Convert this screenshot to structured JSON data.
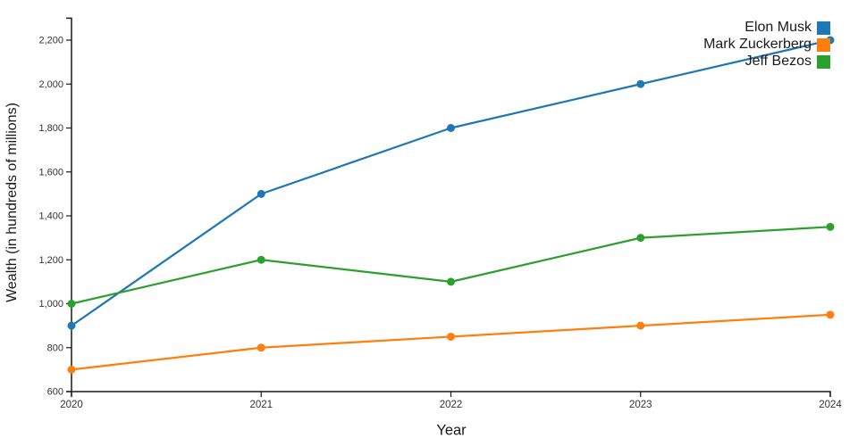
{
  "chart_data": {
    "type": "line",
    "title": "",
    "xlabel": "Year",
    "ylabel": "Wealth (in hundreds of millions)",
    "x": [
      2020,
      2021,
      2022,
      2023,
      2024
    ],
    "x_tick_labels": [
      "2020",
      "2021",
      "2022",
      "2023",
      "2024"
    ],
    "y_ticks": [
      600,
      800,
      1000,
      1200,
      1400,
      1600,
      1800,
      2000,
      2200
    ],
    "y_tick_labels": [
      "600",
      "800",
      "1,000",
      "1,200",
      "1,400",
      "1,600",
      "1,800",
      "2,000",
      "2,200"
    ],
    "xlim": [
      2020,
      2024
    ],
    "ylim": [
      600,
      2300
    ],
    "grid": false,
    "legend_position": "top-right",
    "background": "#ffffff",
    "axis_color": "#1a1a1a",
    "tick_label_color": "#333333",
    "series": [
      {
        "name": "Elon Musk",
        "color": "#1f77b4",
        "values": [
          900,
          1500,
          1800,
          2000,
          2200
        ]
      },
      {
        "name": "Mark Zuckerberg",
        "color": "#ff7f0e",
        "values": [
          700,
          800,
          850,
          900,
          950
        ]
      },
      {
        "name": "Jeff Bezos",
        "color": "#2ca02c",
        "values": [
          1000,
          1200,
          1100,
          1300,
          1350
        ]
      }
    ]
  }
}
